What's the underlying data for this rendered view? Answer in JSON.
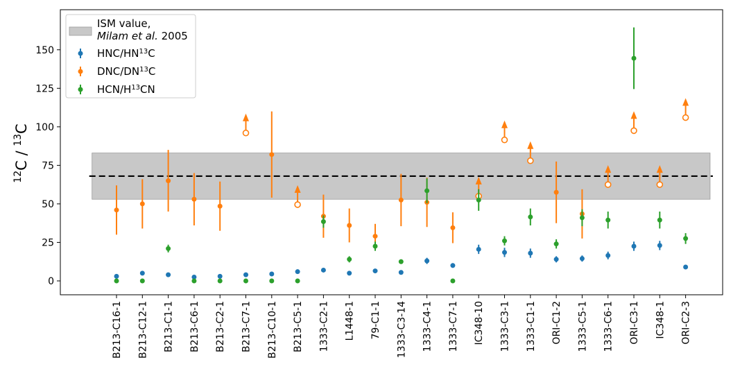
{
  "chart_data": {
    "type": "scatter",
    "ylabel_main": "C / C",
    "ylabel_sup1": "12",
    "ylabel_sup2": "13",
    "ylim": [
      -9,
      176
    ],
    "yticks": [
      0,
      25,
      50,
      75,
      100,
      125,
      150
    ],
    "grid": false,
    "legend_position": "top-left",
    "categories": [
      "B213-C16-1",
      "B213-C12-1",
      "B213-C1-1",
      "B213-C6-1",
      "B213-C2-1",
      "B213-C7-1",
      "B213-C10-1",
      "B213-C5-1",
      "1333-C2-1",
      "L1448-1",
      "79-C1-1",
      "1333-C3-14",
      "1333-C4-1",
      "1333-C7-1",
      "IC348-10",
      "1333-C3-1",
      "1333-C1-1",
      "ORI-C1-2",
      "1333-C5-1",
      "1333-C6-1",
      "ORI-C3-1",
      "IC348-1",
      "ORI-C2-3"
    ],
    "reference": {
      "label_line1": "ISM value,",
      "label_line2_italic": "Milam et al.",
      "label_line2_rest": " 2005",
      "value": 68,
      "band": [
        53,
        83
      ],
      "band_color": "#c8c8c8",
      "line_color": "#000000"
    },
    "series": [
      {
        "name_main": "HNC/HN",
        "name_sup": "13",
        "name_tail": "C",
        "color": "#1f77b4",
        "points": [
          {
            "cat": 0,
            "y": 3,
            "err": 1
          },
          {
            "cat": 1,
            "y": 5,
            "err": 1
          },
          {
            "cat": 2,
            "y": 4,
            "err": 1
          },
          {
            "cat": 3,
            "y": 2.5,
            "err": 1
          },
          {
            "cat": 4,
            "y": 3,
            "err": 1
          },
          {
            "cat": 5,
            "y": 4,
            "err": 1
          },
          {
            "cat": 6,
            "y": 4.5,
            "err": 1
          },
          {
            "cat": 7,
            "y": 6,
            "err": 1
          },
          {
            "cat": 8,
            "y": 7,
            "err": 1
          },
          {
            "cat": 9,
            "y": 5,
            "err": 1
          },
          {
            "cat": 10,
            "y": 6.5,
            "err": 1
          },
          {
            "cat": 11,
            "y": 5.5,
            "err": 1
          },
          {
            "cat": 12,
            "y": 13,
            "err": 2
          },
          {
            "cat": 13,
            "y": 10,
            "err": 1.5
          },
          {
            "cat": 14,
            "y": 20.5,
            "err": 3
          },
          {
            "cat": 15,
            "y": 18.5,
            "err": 3
          },
          {
            "cat": 16,
            "y": 18,
            "err": 3
          },
          {
            "cat": 17,
            "y": 14,
            "err": 2
          },
          {
            "cat": 18,
            "y": 14.5,
            "err": 2
          },
          {
            "cat": 19,
            "y": 16.5,
            "err": 2.5
          },
          {
            "cat": 20,
            "y": 22.5,
            "err": 3
          },
          {
            "cat": 21,
            "y": 23,
            "err": 3
          },
          {
            "cat": 22,
            "y": 9,
            "err": 1
          }
        ]
      },
      {
        "name_main": "DNC/DN",
        "name_sup": "13",
        "name_tail": "C",
        "color": "#ff7f0e",
        "points": [
          {
            "cat": 0,
            "y": 46,
            "err": 16
          },
          {
            "cat": 1,
            "y": 50,
            "err": 16
          },
          {
            "cat": 2,
            "y": 65,
            "err": 20
          },
          {
            "cat": 3,
            "y": 53,
            "err": 17
          },
          {
            "cat": 4,
            "y": 48.5,
            "err": 16
          },
          {
            "cat": 5,
            "y": 96,
            "lower_limit": true
          },
          {
            "cat": 6,
            "y": 82,
            "err": 28
          },
          {
            "cat": 7,
            "y": 49.5,
            "lower_limit": true
          },
          {
            "cat": 8,
            "y": 42,
            "err": 14
          },
          {
            "cat": 9,
            "y": 36,
            "err": 11
          },
          {
            "cat": 10,
            "y": 29,
            "err": 8
          },
          {
            "cat": 11,
            "y": 52.5,
            "err": 17
          },
          {
            "cat": 12,
            "y": 51,
            "err": 16
          },
          {
            "cat": 13,
            "y": 34.5,
            "err": 10
          },
          {
            "cat": 14,
            "y": 55,
            "lower_limit": true
          },
          {
            "cat": 15,
            "y": 91.5,
            "lower_limit": true
          },
          {
            "cat": 16,
            "y": 78,
            "lower_limit": true
          },
          {
            "cat": 17,
            "y": 57.5,
            "err": 20
          },
          {
            "cat": 18,
            "y": 43.5,
            "err": 16
          },
          {
            "cat": 19,
            "y": 62.5,
            "lower_limit": true
          },
          {
            "cat": 20,
            "y": 97.5,
            "lower_limit": true
          },
          {
            "cat": 21,
            "y": 62.5,
            "lower_limit": true
          },
          {
            "cat": 22,
            "y": 106,
            "lower_limit": true
          }
        ]
      },
      {
        "name_main": "HCN/H",
        "name_sup": "13",
        "name_tail": "CN",
        "color": "#2ca02c",
        "points": [
          {
            "cat": 0,
            "y": 0,
            "err": 0
          },
          {
            "cat": 1,
            "y": 0,
            "err": 0
          },
          {
            "cat": 2,
            "y": 21,
            "err": 2.5
          },
          {
            "cat": 3,
            "y": 0,
            "err": 0
          },
          {
            "cat": 4,
            "y": 0,
            "err": 0
          },
          {
            "cat": 5,
            "y": 0,
            "err": 0
          },
          {
            "cat": 6,
            "y": 0,
            "err": 0
          },
          {
            "cat": 7,
            "y": 0,
            "err": 0
          },
          {
            "cat": 8,
            "y": 38.5,
            "err": 4
          },
          {
            "cat": 9,
            "y": 14,
            "err": 2
          },
          {
            "cat": 10,
            "y": 22.5,
            "err": 3
          },
          {
            "cat": 11,
            "y": 12.5,
            "err": 1.5
          },
          {
            "cat": 12,
            "y": 58.5,
            "err": 8
          },
          {
            "cat": 13,
            "y": 0,
            "err": 0
          },
          {
            "cat": 14,
            "y": 52.5,
            "err": 7
          },
          {
            "cat": 15,
            "y": 26,
            "err": 3
          },
          {
            "cat": 16,
            "y": 41.5,
            "err": 5.5
          },
          {
            "cat": 17,
            "y": 24,
            "err": 3
          },
          {
            "cat": 18,
            "y": 41,
            "err": 5.5
          },
          {
            "cat": 19,
            "y": 39.5,
            "err": 5.5
          },
          {
            "cat": 20,
            "y": 144.5,
            "err": 20
          },
          {
            "cat": 21,
            "y": 39.5,
            "err": 5.5
          },
          {
            "cat": 22,
            "y": 27.5,
            "err": 3.5
          }
        ]
      }
    ]
  }
}
